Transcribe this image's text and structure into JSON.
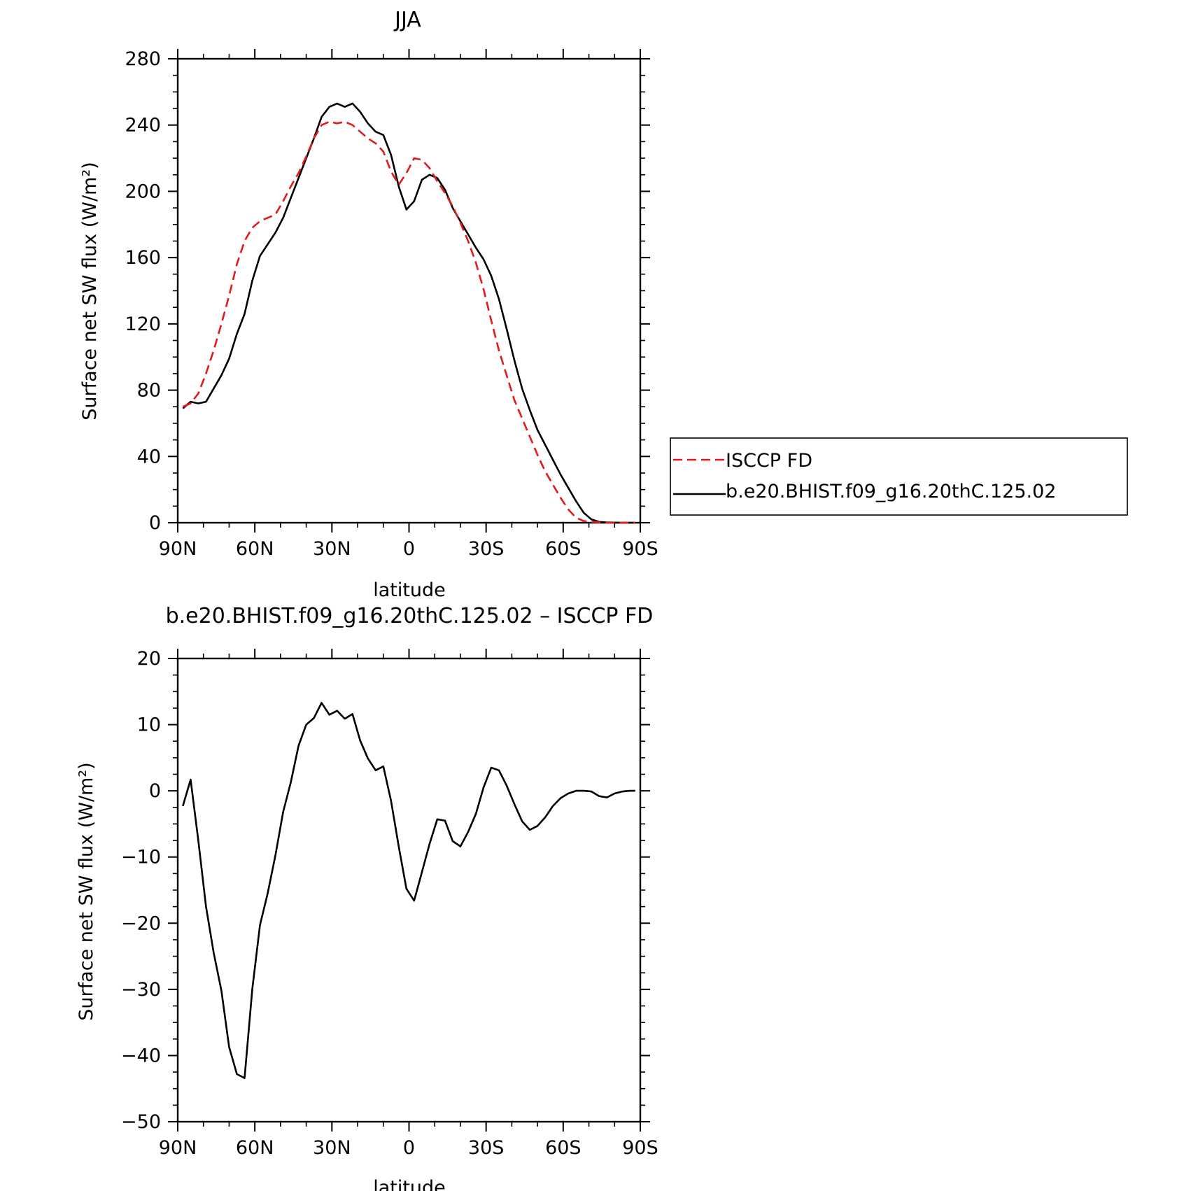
{
  "chart_data": [
    {
      "type": "line",
      "title": "JJA",
      "xlabel": "latitude",
      "ylabel": "Surface net SW flux (W/m²)",
      "xlim": [
        90,
        -90
      ],
      "ylim": [
        0,
        280
      ],
      "x_ticks": [
        90,
        60,
        30,
        0,
        -30,
        -60,
        -90
      ],
      "x_tick_labels": [
        "90N",
        "60N",
        "30N",
        "0",
        "30S",
        "60S",
        "90S"
      ],
      "y_ticks": [
        0,
        40,
        80,
        120,
        160,
        200,
        240,
        280
      ],
      "y_tick_labels": [
        "0",
        "40",
        "80",
        "120",
        "160",
        "200",
        "240",
        "280"
      ],
      "legend": {
        "placement": "right",
        "entries": [
          "ISCCP FD",
          "b.e20.BHIST.f09_g16.20thC.125.02"
        ]
      },
      "series": [
        {
          "name": "ISCCP FD",
          "color": "#e31a1c",
          "dash": true,
          "points": [
            [
              88,
              70
            ],
            [
              85,
              72
            ],
            [
              82,
              78
            ],
            [
              79,
              90
            ],
            [
              76,
              104
            ],
            [
              73,
              120
            ],
            [
              70,
              137
            ],
            [
              67,
              156
            ],
            [
              64,
              170
            ],
            [
              61,
              178
            ],
            [
              58,
              182
            ],
            [
              55,
              184
            ],
            [
              52,
              186
            ],
            [
              49,
              194
            ],
            [
              46,
              203
            ],
            [
              43,
              211
            ],
            [
              40,
              221
            ],
            [
              37,
              232
            ],
            [
              34,
              240
            ],
            [
              31,
              242
            ],
            [
              28,
              241
            ],
            [
              25,
              242
            ],
            [
              22,
              240
            ],
            [
              19,
              236
            ],
            [
              16,
              232
            ],
            [
              13,
              229
            ],
            [
              10,
              224
            ],
            [
              7,
              212
            ],
            [
              4,
              204
            ],
            [
              1,
              211
            ],
            [
              -2,
              220
            ],
            [
              -5,
              219
            ],
            [
              -8,
              214
            ],
            [
              -11,
              206
            ],
            [
              -14,
              199
            ],
            [
              -17,
              191
            ],
            [
              -20,
              181
            ],
            [
              -23,
              170
            ],
            [
              -26,
              157
            ],
            [
              -29,
              141
            ],
            [
              -32,
              122
            ],
            [
              -35,
              104
            ],
            [
              -38,
              89
            ],
            [
              -41,
              74
            ],
            [
              -44,
              63
            ],
            [
              -47,
              52
            ],
            [
              -50,
              41
            ],
            [
              -53,
              31
            ],
            [
              -56,
              23
            ],
            [
              -59,
              15
            ],
            [
              -62,
              8
            ],
            [
              -65,
              3
            ],
            [
              -68,
              1
            ],
            [
              -71,
              0.5
            ],
            [
              -74,
              0.2
            ],
            [
              -77,
              0
            ],
            [
              -80,
              0
            ],
            [
              -83,
              0
            ],
            [
              -86,
              0
            ],
            [
              -88,
              0
            ]
          ]
        },
        {
          "name": "b.e20.BHIST.f09_g16.20thC.125.02",
          "color": "#000000",
          "dash": false,
          "points": [
            [
              88,
              69
            ],
            [
              85,
              73
            ],
            [
              82,
              72
            ],
            [
              79,
              73
            ],
            [
              76,
              81
            ],
            [
              73,
              89
            ],
            [
              70,
              99
            ],
            [
              67,
              114
            ],
            [
              64,
              126
            ],
            [
              61,
              146
            ],
            [
              58,
              161
            ],
            [
              55,
              168
            ],
            [
              52,
              175
            ],
            [
              49,
              184
            ],
            [
              46,
              196
            ],
            [
              43,
              208
            ],
            [
              40,
              220
            ],
            [
              37,
              232
            ],
            [
              34,
              245
            ],
            [
              31,
              251
            ],
            [
              28,
              253
            ],
            [
              25,
              251
            ],
            [
              22,
              253
            ],
            [
              19,
              248
            ],
            [
              16,
              241
            ],
            [
              13,
              236
            ],
            [
              10,
              234
            ],
            [
              7,
              222
            ],
            [
              4,
              203
            ],
            [
              1,
              189
            ],
            [
              -2,
              194
            ],
            [
              -5,
              207
            ],
            [
              -8,
              210
            ],
            [
              -11,
              208
            ],
            [
              -14,
              201
            ],
            [
              -17,
              190
            ],
            [
              -20,
              182
            ],
            [
              -23,
              174
            ],
            [
              -26,
              166
            ],
            [
              -29,
              159
            ],
            [
              -32,
              149
            ],
            [
              -35,
              135
            ],
            [
              -38,
              117
            ],
            [
              -41,
              98
            ],
            [
              -44,
              81
            ],
            [
              -47,
              68
            ],
            [
              -50,
              56
            ],
            [
              -53,
              47
            ],
            [
              -56,
              38
            ],
            [
              -59,
              29
            ],
            [
              -62,
              21
            ],
            [
              -65,
              13
            ],
            [
              -68,
              6
            ],
            [
              -71,
              2
            ],
            [
              -74,
              0.5
            ],
            [
              -77,
              0.2
            ],
            [
              -80,
              0.1
            ],
            [
              -83,
              0
            ],
            [
              -86,
              0
            ],
            [
              -88,
              0
            ]
          ]
        }
      ]
    },
    {
      "type": "line",
      "title": "b.e20.BHIST.f09_g16.20thC.125.02 – ISCCP FD",
      "xlabel": "latitude",
      "ylabel": "Surface net SW flux (W/m²)",
      "xlim": [
        90,
        -90
      ],
      "ylim": [
        -50,
        20
      ],
      "x_ticks": [
        90,
        60,
        30,
        0,
        -30,
        -60,
        -90
      ],
      "x_tick_labels": [
        "90N",
        "60N",
        "30N",
        "0",
        "30S",
        "60S",
        "90S"
      ],
      "y_ticks": [
        -50,
        -40,
        -30,
        -20,
        -10,
        0,
        10,
        20
      ],
      "y_tick_labels": [
        "−50",
        "−40",
        "−30",
        "−20",
        "−10",
        "0",
        "10",
        "20"
      ],
      "series": [
        {
          "color": "#000000",
          "dash": false,
          "points": [
            [
              88,
              -2.3
            ],
            [
              85,
              1.7
            ],
            [
              82,
              -7.5
            ],
            [
              79,
              -17.5
            ],
            [
              76,
              -24.5
            ],
            [
              73,
              -30.2
            ],
            [
              70,
              -38.7
            ],
            [
              67,
              -42.8
            ],
            [
              64,
              -43.4
            ],
            [
              61,
              -30
            ],
            [
              58,
              -20.3
            ],
            [
              55,
              -15.5
            ],
            [
              52,
              -9.8
            ],
            [
              49,
              -3.2
            ],
            [
              46,
              1.3
            ],
            [
              43,
              6.8
            ],
            [
              40,
              10
            ],
            [
              37,
              11
            ],
            [
              34,
              13.3
            ],
            [
              31,
              11.5
            ],
            [
              28,
              12.1
            ],
            [
              25,
              10.9
            ],
            [
              22,
              11.6
            ],
            [
              19,
              7.6
            ],
            [
              16,
              4.9
            ],
            [
              13,
              3.1
            ],
            [
              10,
              3.7
            ],
            [
              7,
              -1.5
            ],
            [
              4,
              -8.4
            ],
            [
              1,
              -14.8
            ],
            [
              -2,
              -16.6
            ],
            [
              -5,
              -12.3
            ],
            [
              -8,
              -8
            ],
            [
              -11,
              -4.3
            ],
            [
              -14,
              -4.5
            ],
            [
              -17,
              -7.6
            ],
            [
              -20,
              -8.4
            ],
            [
              -23,
              -6.2
            ],
            [
              -26,
              -3.5
            ],
            [
              -29,
              0.5
            ],
            [
              -32,
              3.5
            ],
            [
              -35,
              3.1
            ],
            [
              -38,
              0.8
            ],
            [
              -41,
              -2
            ],
            [
              -44,
              -4.6
            ],
            [
              -47,
              -5.9
            ],
            [
              -50,
              -5.3
            ],
            [
              -53,
              -4
            ],
            [
              -56,
              -2.3
            ],
            [
              -59,
              -1.1
            ],
            [
              -62,
              -0.4
            ],
            [
              -65,
              0
            ],
            [
              -68,
              0
            ],
            [
              -71,
              -0.1
            ],
            [
              -74,
              -0.8
            ],
            [
              -77,
              -1
            ],
            [
              -80,
              -0.4
            ],
            [
              -83,
              -0.1
            ],
            [
              -86,
              0
            ],
            [
              -88,
              0
            ]
          ]
        }
      ]
    }
  ]
}
